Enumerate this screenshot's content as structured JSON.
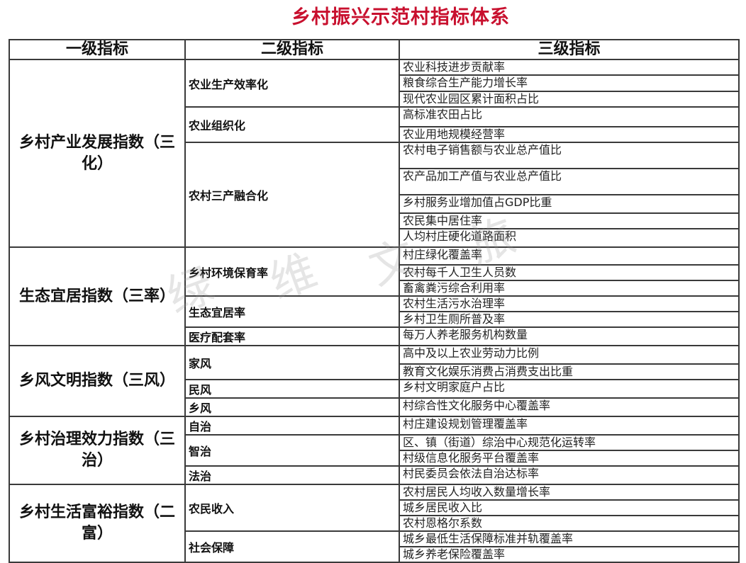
{
  "title": "乡村振兴示范村指标体系",
  "headers": [
    "一级指标",
    "二级指标",
    "三级指标"
  ],
  "watermark": "绿维文旅",
  "groups": [
    {
      "name": "乡村产业发展指数（三化）",
      "subs": [
        {
          "name": "农业生产效率化",
          "items": [
            "农业科技进步贡献率",
            "粮食综合生产能力增长率",
            "现代农业园区累计面积占比"
          ]
        },
        {
          "name": "农业组织化",
          "items": [
            "高标准农田占比",
            "农业用地规模经营率"
          ]
        },
        {
          "name": "农村三产融合化",
          "items": [
            "农村电子销售额与农业总产值比",
            "农产品加工产值与农业总产值比",
            "乡村服务业增加值占GDP比重",
            "农民集中居住率",
            "人均村庄硬化道路面积"
          ]
        }
      ]
    },
    {
      "name": "生态宜居指数（三率）",
      "subs": [
        {
          "name": "乡村环境保育率",
          "items": [
            "村庄绿化覆盖率",
            "农村每千人卫生人员数",
            "畜禽粪污综合利用率"
          ]
        },
        {
          "name": "生态宜居率",
          "items": [
            "农村生活污水治理率",
            "乡村卫生厕所普及率"
          ]
        },
        {
          "name": "医疗配套率",
          "items": [
            "每万人养老服务机构数量"
          ]
        }
      ]
    },
    {
      "name": "乡风文明指数（三风）",
      "subs": [
        {
          "name": "家风",
          "items": [
            "高中及以上农业劳动力比例",
            "教育文化娱乐消费占消费支出比重"
          ]
        },
        {
          "name": "民风",
          "items": [
            "乡村文明家庭户占比"
          ]
        },
        {
          "name": "乡风",
          "items": [
            "村综合性文化服务中心覆盖率"
          ]
        }
      ]
    },
    {
      "name": "乡村治理效力指数（三治）",
      "subs": [
        {
          "name": "自治",
          "items": [
            "村庄建设规划管理覆盖率"
          ]
        },
        {
          "name": "智治",
          "items": [
            "区、镇（街道）综治中心规范化运转率",
            "村级信息化服务平台覆盖率"
          ]
        },
        {
          "name": "法治",
          "items": [
            "村民委员会依法自治达标率"
          ]
        }
      ]
    },
    {
      "name": "乡村生活富裕指数（二富）",
      "subs": [
        {
          "name": "农民收入",
          "items": [
            "农村居民人均收入数量增长率",
            "城乡居民收入比",
            "农村恩格尔系数"
          ]
        },
        {
          "name": "社会保障",
          "items": [
            "城乡最低生活保障标准并轨覆盖率",
            "城乡养老保险覆盖率"
          ]
        }
      ]
    }
  ]
}
